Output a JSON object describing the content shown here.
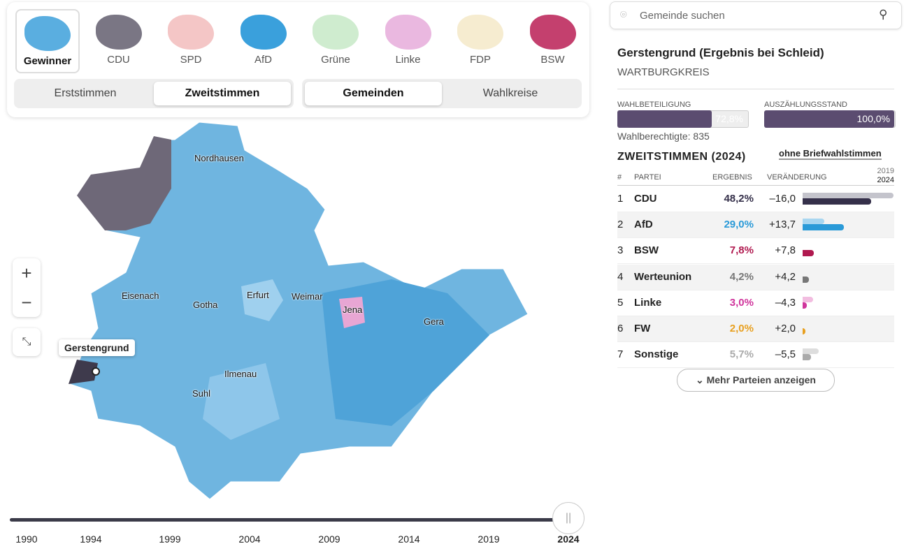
{
  "party_tabs": [
    "Gewinner",
    "CDU",
    "SPD",
    "AfD",
    "Grüne",
    "Linke",
    "FDP",
    "BSW"
  ],
  "vote_toggle": [
    "Erststimmen",
    "Zweitstimmen"
  ],
  "level_toggle": [
    "Gemeinden",
    "Wahlkreise"
  ],
  "map": {
    "cities": [
      "Nordhausen",
      "Eisenach",
      "Gotha",
      "Erfurt",
      "Weimar",
      "Jena",
      "Gera",
      "Ilmenau",
      "Suhl"
    ],
    "tooltip": "Gerstengrund"
  },
  "timeline": {
    "years": [
      "1990",
      "1994",
      "1999",
      "2004",
      "2009",
      "2014",
      "2019",
      "2024"
    ]
  },
  "search": {
    "placeholder": "Gemeinde suchen"
  },
  "detail": {
    "title": "Gerstengrund (Ergebnis bei Schleid)",
    "district": "WARTBURGKREIS",
    "turnout": {
      "label": "WAHLBETEILIGUNG",
      "value": 72.8,
      "value_label": "72,8%"
    },
    "count": {
      "label": "AUSZÄHLUNGSSTAND",
      "value": 100,
      "value_label": "100,0%"
    },
    "eligible": "Wahlberechtigte: 835",
    "section": "ZWEITSTIMMEN (2024)",
    "toggle": "ohne Briefwahlstimmen",
    "columns": [
      "#",
      "PARTEI",
      "ERGEBNIS",
      "VERÄNDERUNG"
    ],
    "bar_years": [
      "2019",
      "2024"
    ],
    "rows": [
      {
        "rank": 1,
        "party": "CDU",
        "result": "48,2%",
        "change": "–16,0",
        "share": 48.2,
        "share_prev": 64.2,
        "color": "#35304a",
        "color_prev": "#c4c4cc"
      },
      {
        "rank": 2,
        "party": "AfD",
        "result": "29,0%",
        "change": "+13,7",
        "share": 29.0,
        "share_prev": 15.3,
        "color": "#2a9ad8",
        "color_prev": "#a8d6f0"
      },
      {
        "rank": 3,
        "party": "BSW",
        "result": "7,8%",
        "change": "+7,8",
        "share": 7.8,
        "share_prev": 0,
        "color": "#b0194f",
        "color_prev": "#e8b0c4"
      },
      {
        "rank": 4,
        "party": "Werteunion",
        "result": "4,2%",
        "change": "+4,2",
        "share": 4.2,
        "share_prev": 0,
        "color": "#777777",
        "color_prev": "#cccccc"
      },
      {
        "rank": 5,
        "party": "Linke",
        "result": "3,0%",
        "change": "–4,3",
        "share": 3.0,
        "share_prev": 7.3,
        "color": "#d0359c",
        "color_prev": "#f2bde0"
      },
      {
        "rank": 6,
        "party": "FW",
        "result": "2,0%",
        "change": "+2,0",
        "share": 2.0,
        "share_prev": 0,
        "color": "#e8a020",
        "color_prev": "#f6dca8"
      },
      {
        "rank": 7,
        "party": "Sonstige",
        "result": "5,7%",
        "change": "–5,5",
        "share": 5.7,
        "share_prev": 11.2,
        "color": "#aaaaaa",
        "color_prev": "#dddddd"
      }
    ],
    "more": "Mehr Parteien anzeigen"
  }
}
